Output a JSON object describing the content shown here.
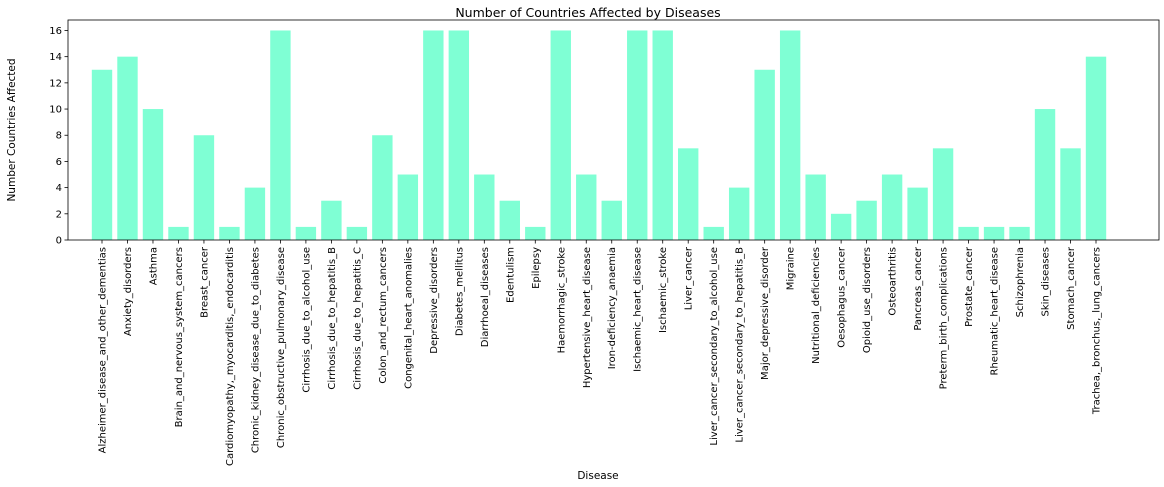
{
  "chart_data": {
    "type": "bar",
    "title": "Number of Countries Affected by Diseases",
    "xlabel": "Disease",
    "ylabel": "Number Countries Affected",
    "ylim": [
      0,
      16.8
    ],
    "yticks": [
      0,
      2,
      4,
      6,
      8,
      10,
      12,
      14,
      16
    ],
    "bar_color": "#7fffd4",
    "grid": false,
    "categories": [
      "Alzheimer_disease_and_other_dementias",
      "Anxiety_disorders",
      "Asthma",
      "Brain_and_nervous_system_cancers",
      "Breast_cancer",
      "Cardiomyopathy,_myocarditis,_endocarditis",
      "Chronic_kidney_disease_due_to_diabetes",
      "Chronic_obstructive_pulmonary_disease",
      "Cirrhosis_due_to_alcohol_use",
      "Cirrhosis_due_to_hepatitis_B",
      "Cirrhosis_due_to_hepatitis_C",
      "Colon_and_rectum_cancers",
      "Congenital_heart_anomalies",
      "Depressive_disorders",
      "Diabetes_mellitus",
      "Diarrhoeal_diseases",
      "Edentulism",
      "Epilepsy",
      "Haemorrhagic_stroke",
      "Hypertensive_heart_disease",
      "Iron-deficiency_anaemia",
      "Ischaemic_heart_disease",
      "Ischaemic_stroke",
      "Liver_cancer",
      "Liver_cancer_secondary_to_alcohol_use",
      "Liver_cancer_secondary_to_hepatitis_B",
      "Major_depressive_disorder",
      "Migraine",
      "Nutritional_deficiencies",
      "Oesophagus_cancer",
      "Opioid_use_disorders",
      "Osteoarthritis",
      "Pancreas_cancer",
      "Preterm_birth_complications",
      "Prostate_cancer",
      "Rheumatic_heart_disease",
      "Schizophrenia",
      "Skin_diseases",
      "Stomach_cancer",
      "Trachea,_bronchus,_lung_cancers"
    ],
    "values": [
      13,
      14,
      10,
      1,
      8,
      1,
      4,
      16,
      1,
      3,
      1,
      8,
      5,
      16,
      16,
      5,
      3,
      1,
      16,
      5,
      3,
      16,
      16,
      7,
      1,
      4,
      13,
      16,
      5,
      2,
      3,
      5,
      4,
      7,
      1,
      1,
      1,
      10,
      7,
      14
    ]
  }
}
